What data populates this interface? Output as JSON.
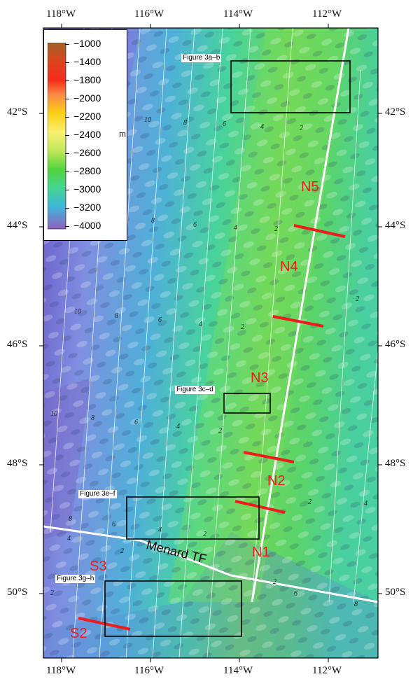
{
  "map": {
    "x_axis": {
      "ticks": [
        "118°W",
        "116°W",
        "114°W",
        "112°W"
      ]
    },
    "y_axis": {
      "ticks": [
        "42°S",
        "44°S",
        "46°S",
        "48°S",
        "50°S"
      ]
    },
    "colorbar": {
      "labels": [
        "−1000",
        "−1400",
        "−1800",
        "−2000",
        "−2200",
        "−2400",
        "−2600",
        "−2800",
        "−3000",
        "−3200",
        "−4000"
      ],
      "colors": [
        "#a0622a",
        "#d9481f",
        "#f52a1c",
        "#f98b46",
        "#fcd114",
        "#f8f070",
        "#c3e85a",
        "#52d43c",
        "#43d592",
        "#3db7d8",
        "#6b5fd6",
        "#9060c0"
      ],
      "unit": "m"
    },
    "figure_boxes": [
      {
        "label": "Figure 3a–b"
      },
      {
        "label": "Figure 3c–d"
      },
      {
        "label": "Figure 3e–f"
      },
      {
        "label": "Figure 3g–h"
      }
    ],
    "segments": [
      "N5",
      "N4",
      "N3",
      "N2",
      "N1",
      "S3",
      "S2"
    ],
    "feature": "Menard TF",
    "contour_labels": [
      "10",
      "8",
      "6",
      "4",
      "2",
      "8",
      "6",
      "4",
      "2",
      "10",
      "8",
      "6",
      "4",
      "2",
      "2",
      "10",
      "8",
      "6",
      "4",
      "2",
      "8",
      "6",
      "4",
      "2",
      "4",
      "2",
      "2",
      "4",
      "2",
      "6",
      "8",
      "2"
    ],
    "colors": {
      "ridge": "#ffffff",
      "boundary_lines": "#ee1c1c",
      "box": "#000000"
    }
  }
}
